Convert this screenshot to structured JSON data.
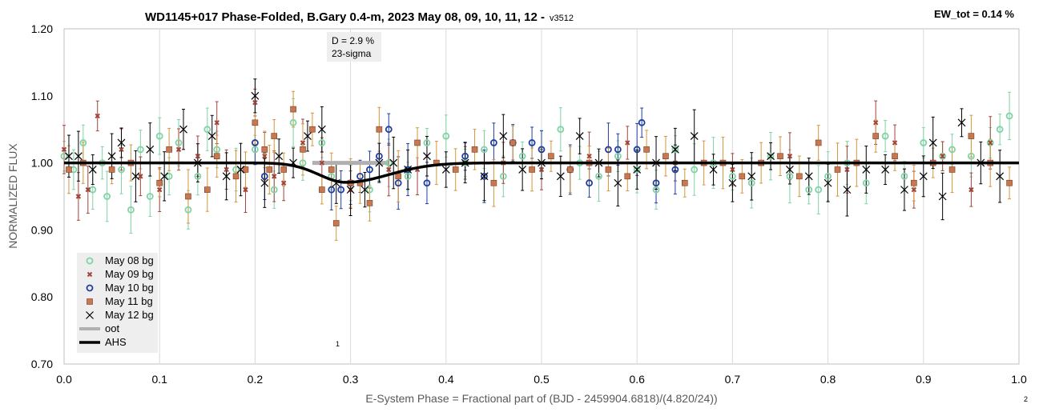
{
  "chart_data": {
    "type": "scatter",
    "title": "WD1145+017 Phase-Folded, B.Gary 0.4-m, 2023 May 08, 09, 10, 11, 12 -",
    "version": "v3512",
    "ew_label": "EW_tot = 0.14 %",
    "xlabel": "E-System Phase = Fractional part of (BJD - 2459904.6818)/(4.820/24))",
    "ylabel": "NORMALIZED FLUX",
    "xlim": [
      0.0,
      1.0
    ],
    "ylim": [
      0.7,
      1.2
    ],
    "x_ticks": [
      "0.0",
      "0.1",
      "0.2",
      "0.3",
      "0.4",
      "0.5",
      "0.6",
      "0.7",
      "0.8",
      "0.9",
      "1.0"
    ],
    "y_ticks": [
      "0.70",
      "0.80",
      "0.90",
      "1.00",
      "1.10",
      "1.20"
    ],
    "grid": "vertical",
    "legend_position": "bottom-left",
    "annotation": {
      "lines": [
        "D = 2.9 %",
        "23-sigma"
      ],
      "x": 0.29,
      "y": 1.18
    },
    "label_1": "1",
    "label_2": "2",
    "dip_model": {
      "center": 0.295,
      "depth": 0.029,
      "baseline": 1.0
    },
    "series": [
      {
        "name": "May 08 bg",
        "marker": "open-circle",
        "color": "#7fd3a5",
        "points": [
          [
            0.0,
            1.01
          ],
          [
            0.01,
            0.99
          ],
          [
            0.02,
            1.03
          ],
          [
            0.03,
            0.96
          ],
          [
            0.04,
            1.0
          ],
          [
            0.045,
            0.95
          ],
          [
            0.06,
            0.99
          ],
          [
            0.07,
            0.93
          ],
          [
            0.08,
            1.02
          ],
          [
            0.09,
            0.95
          ],
          [
            0.1,
            1.04
          ],
          [
            0.11,
            0.98
          ],
          [
            0.12,
            1.03
          ],
          [
            0.13,
            0.93
          ],
          [
            0.14,
            0.98
          ],
          [
            0.15,
            1.05
          ],
          [
            0.16,
            1.02
          ],
          [
            0.18,
            0.99
          ],
          [
            0.2,
            1.02
          ],
          [
            0.22,
            0.96
          ],
          [
            0.24,
            1.06
          ],
          [
            0.25,
            1.0
          ],
          [
            0.27,
            1.03
          ],
          [
            0.28,
            0.98
          ],
          [
            0.3,
            0.97
          ],
          [
            0.32,
            0.96
          ],
          [
            0.34,
            1.0
          ],
          [
            0.36,
            0.98
          ],
          [
            0.38,
            1.03
          ],
          [
            0.4,
            1.04
          ],
          [
            0.42,
            1.0
          ],
          [
            0.44,
            1.02
          ],
          [
            0.46,
            0.98
          ],
          [
            0.48,
            1.01
          ],
          [
            0.5,
            1.02
          ],
          [
            0.52,
            1.05
          ],
          [
            0.54,
            1.0
          ],
          [
            0.56,
            0.98
          ],
          [
            0.58,
            1.01
          ],
          [
            0.6,
            0.99
          ],
          [
            0.62,
            0.96
          ],
          [
            0.64,
            1.02
          ],
          [
            0.66,
            0.99
          ],
          [
            0.68,
            1.0
          ],
          [
            0.7,
            0.98
          ],
          [
            0.72,
            0.97
          ],
          [
            0.74,
            1.01
          ],
          [
            0.76,
            0.98
          ],
          [
            0.78,
            0.96
          ],
          [
            0.79,
            0.96
          ],
          [
            0.8,
            0.98
          ],
          [
            0.82,
            1.0
          ],
          [
            0.84,
            0.97
          ],
          [
            0.86,
            1.04
          ],
          [
            0.88,
            0.98
          ],
          [
            0.9,
            1.03
          ],
          [
            0.92,
            1.01
          ],
          [
            0.93,
            1.02
          ],
          [
            0.95,
            1.01
          ],
          [
            0.97,
            1.03
          ],
          [
            0.98,
            1.05
          ],
          [
            0.99,
            1.07
          ]
        ]
      },
      {
        "name": "May 09 bg",
        "marker": "x-small",
        "color": "#a0453a",
        "points": [
          [
            0.0,
            1.02
          ],
          [
            0.015,
            0.95
          ],
          [
            0.025,
            0.96
          ],
          [
            0.035,
            1.07
          ],
          [
            0.06,
            1.02
          ],
          [
            0.08,
            0.98
          ],
          [
            0.1,
            0.96
          ],
          [
            0.12,
            1.02
          ],
          [
            0.14,
            1.01
          ],
          [
            0.16,
            1.06
          ],
          [
            0.17,
            0.99
          ],
          [
            0.19,
            0.96
          ],
          [
            0.2,
            1.09
          ],
          [
            0.21,
            1.01
          ],
          [
            0.22,
            0.98
          ],
          [
            0.23,
            0.97
          ],
          [
            0.25,
            1.03
          ],
          [
            0.27,
            1.0
          ],
          [
            0.3,
            0.96
          ],
          [
            0.34,
            0.99
          ],
          [
            0.37,
            0.99
          ],
          [
            0.42,
            1.0
          ],
          [
            0.46,
            1.0
          ],
          [
            0.5,
            0.99
          ],
          [
            0.55,
            1.01
          ],
          [
            0.59,
            1.03
          ],
          [
            0.64,
            1.0
          ],
          [
            0.7,
            0.99
          ],
          [
            0.76,
            1.01
          ],
          [
            0.82,
            0.99
          ],
          [
            0.85,
            1.06
          ],
          [
            0.87,
            1.03
          ],
          [
            0.89,
            0.96
          ],
          [
            0.92,
            1.01
          ],
          [
            0.95,
            0.96
          ],
          [
            0.97,
            1.03
          ]
        ]
      },
      {
        "name": "May 10 bg",
        "marker": "open-circle",
        "color": "#1f3fa0",
        "points": [
          [
            0.2,
            1.03
          ],
          [
            0.21,
            0.98
          ],
          [
            0.28,
            0.96
          ],
          [
            0.29,
            0.96
          ],
          [
            0.3,
            0.97
          ],
          [
            0.31,
            0.98
          ],
          [
            0.32,
            0.99
          ],
          [
            0.33,
            1.01
          ],
          [
            0.34,
            1.05
          ],
          [
            0.35,
            0.97
          ],
          [
            0.36,
            0.99
          ],
          [
            0.38,
            0.97
          ],
          [
            0.42,
            1.01
          ],
          [
            0.44,
            0.98
          ],
          [
            0.45,
            1.03
          ],
          [
            0.47,
            1.03
          ],
          [
            0.49,
            1.03
          ],
          [
            0.5,
            1.02
          ],
          [
            0.53,
            0.99
          ],
          [
            0.55,
            0.97
          ],
          [
            0.57,
            1.02
          ],
          [
            0.58,
            1.02
          ],
          [
            0.6,
            1.02
          ],
          [
            0.605,
            1.06
          ],
          [
            0.62,
            0.97
          ],
          [
            0.64,
            0.99
          ]
        ]
      },
      {
        "name": "May 11 bg",
        "marker": "square",
        "color": "#c87850",
        "points": [
          [
            0.005,
            0.99
          ],
          [
            0.02,
            1.0
          ],
          [
            0.05,
            0.99
          ],
          [
            0.07,
            1.0
          ],
          [
            0.1,
            0.97
          ],
          [
            0.11,
            1.02
          ],
          [
            0.13,
            0.95
          ],
          [
            0.15,
            0.96
          ],
          [
            0.16,
            1.01
          ],
          [
            0.18,
            0.98
          ],
          [
            0.19,
            0.99
          ],
          [
            0.2,
            1.06
          ],
          [
            0.21,
            1.02
          ],
          [
            0.215,
            0.99
          ],
          [
            0.22,
            1.04
          ],
          [
            0.23,
            0.99
          ],
          [
            0.24,
            1.08
          ],
          [
            0.25,
            1.02
          ],
          [
            0.26,
            1.05
          ],
          [
            0.27,
            0.96
          ],
          [
            0.28,
            0.99
          ],
          [
            0.285,
            0.91
          ],
          [
            0.3,
            0.97
          ],
          [
            0.31,
            0.97
          ],
          [
            0.32,
            0.94
          ],
          [
            0.33,
            1.05
          ],
          [
            0.35,
            0.98
          ],
          [
            0.37,
            1.03
          ],
          [
            0.39,
            1.0
          ],
          [
            0.41,
            0.99
          ],
          [
            0.43,
            1.02
          ],
          [
            0.45,
            0.97
          ],
          [
            0.47,
            1.03
          ],
          [
            0.49,
            0.99
          ],
          [
            0.51,
            1.01
          ],
          [
            0.53,
            0.99
          ],
          [
            0.55,
            1.0
          ],
          [
            0.57,
            0.99
          ],
          [
            0.59,
            0.98
          ],
          [
            0.61,
            1.02
          ],
          [
            0.63,
            1.01
          ],
          [
            0.65,
            0.97
          ],
          [
            0.67,
            1.0
          ],
          [
            0.69,
            1.0
          ],
          [
            0.71,
            0.98
          ],
          [
            0.73,
            1.0
          ],
          [
            0.75,
            1.01
          ],
          [
            0.77,
            0.98
          ],
          [
            0.79,
            1.03
          ],
          [
            0.81,
            0.99
          ],
          [
            0.83,
            1.0
          ],
          [
            0.85,
            1.04
          ],
          [
            0.87,
            1.01
          ],
          [
            0.89,
            0.97
          ],
          [
            0.91,
            1.0
          ],
          [
            0.93,
            0.99
          ],
          [
            0.95,
            1.04
          ],
          [
            0.97,
            1.0
          ],
          [
            0.99,
            0.97
          ]
        ]
      },
      {
        "name": "May 12 bg",
        "marker": "x",
        "color": "#000000",
        "points": [
          [
            0.005,
            1.01
          ],
          [
            0.015,
            1.01
          ],
          [
            0.03,
            0.99
          ],
          [
            0.05,
            1.01
          ],
          [
            0.06,
            1.03
          ],
          [
            0.075,
            0.98
          ],
          [
            0.09,
            1.02
          ],
          [
            0.105,
            0.98
          ],
          [
            0.125,
            1.05
          ],
          [
            0.14,
            1.0
          ],
          [
            0.155,
            1.04
          ],
          [
            0.17,
            0.98
          ],
          [
            0.185,
            0.99
          ],
          [
            0.2,
            1.1
          ],
          [
            0.21,
            0.97
          ],
          [
            0.225,
            1.01
          ],
          [
            0.24,
            1.0
          ],
          [
            0.255,
            1.04
          ],
          [
            0.27,
            1.05
          ],
          [
            0.285,
            0.97
          ],
          [
            0.3,
            0.96
          ],
          [
            0.315,
            0.96
          ],
          [
            0.33,
            1.0
          ],
          [
            0.345,
            1.0
          ],
          [
            0.36,
            0.99
          ],
          [
            0.38,
            1.01
          ],
          [
            0.4,
            0.99
          ],
          [
            0.42,
            1.0
          ],
          [
            0.44,
            0.98
          ],
          [
            0.46,
            1.04
          ],
          [
            0.48,
            0.99
          ],
          [
            0.5,
            1.0
          ],
          [
            0.52,
            0.98
          ],
          [
            0.54,
            1.04
          ],
          [
            0.56,
            1.0
          ],
          [
            0.58,
            0.97
          ],
          [
            0.6,
            0.99
          ],
          [
            0.62,
            1.0
          ],
          [
            0.64,
            1.02
          ],
          [
            0.66,
            1.04
          ],
          [
            0.68,
            0.99
          ],
          [
            0.7,
            0.97
          ],
          [
            0.72,
            0.98
          ],
          [
            0.74,
            1.01
          ],
          [
            0.76,
            0.99
          ],
          [
            0.78,
            0.98
          ],
          [
            0.8,
            0.97
          ],
          [
            0.82,
            0.96
          ],
          [
            0.84,
            0.99
          ],
          [
            0.86,
            0.99
          ],
          [
            0.88,
            0.96
          ],
          [
            0.9,
            0.98
          ],
          [
            0.91,
            1.03
          ],
          [
            0.92,
            0.95
          ],
          [
            0.94,
            1.06
          ],
          [
            0.96,
            1.0
          ],
          [
            0.98,
            0.98
          ]
        ]
      }
    ],
    "lines": [
      {
        "name": "oot",
        "color": "#b0b0b0"
      },
      {
        "name": "AHS",
        "color": "#000000"
      }
    ]
  }
}
